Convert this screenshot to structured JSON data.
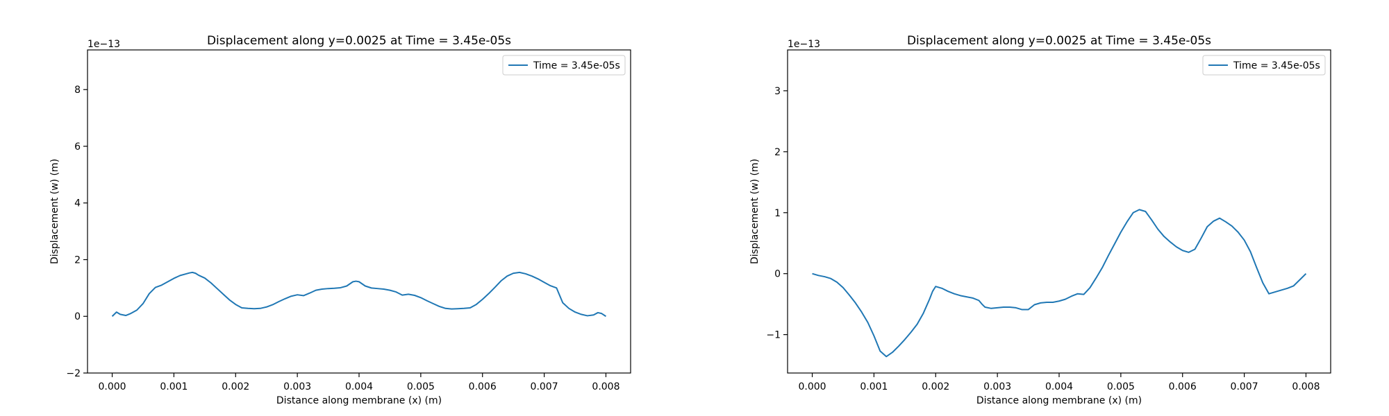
{
  "chart_data": [
    {
      "type": "line",
      "title": "Displacement along y=0.0025 at Time = 3.45e-05s",
      "xlabel": "Distance along membrane (x) (m)",
      "ylabel": "Displacement (w) (m)",
      "y_offset_label": "1e−13",
      "xlim": [
        -0.0004,
        0.0084
      ],
      "ylim": [
        -2,
        9.4
      ],
      "xticks": [
        0.0,
        0.001,
        0.002,
        0.003,
        0.004,
        0.005,
        0.006,
        0.007,
        0.008
      ],
      "xtick_labels": [
        "0.000",
        "0.001",
        "0.002",
        "0.003",
        "0.004",
        "0.005",
        "0.006",
        "0.007",
        "0.008"
      ],
      "yticks": [
        -2,
        0,
        2,
        4,
        6,
        8
      ],
      "ytick_labels": [
        "−2",
        "0",
        "2",
        "4",
        "6",
        "8"
      ],
      "legend_position": "top-right",
      "grid": false,
      "series": [
        {
          "name": "Time = 3.45e-05s",
          "color": "#1f77b4",
          "x": [
            0.0,
            7e-05,
            0.00013,
            0.00022,
            0.0003,
            0.0004,
            0.0005,
            0.0006,
            0.0007,
            0.0008,
            0.0009,
            0.001,
            0.0011,
            0.0012,
            0.00125,
            0.0013,
            0.00135,
            0.0014,
            0.0015,
            0.0016,
            0.0017,
            0.0018,
            0.0019,
            0.002,
            0.0021,
            0.0022,
            0.0023,
            0.0024,
            0.0025,
            0.0026,
            0.0027,
            0.0028,
            0.0029,
            0.003,
            0.0031,
            0.0032,
            0.0033,
            0.0034,
            0.0035,
            0.0036,
            0.0037,
            0.0038,
            0.0039,
            0.00395,
            0.004,
            0.0041,
            0.0042,
            0.0043,
            0.0044,
            0.0045,
            0.0046,
            0.0047,
            0.0048,
            0.0049,
            0.005,
            0.0051,
            0.0052,
            0.0053,
            0.0054,
            0.0055,
            0.0056,
            0.0057,
            0.0058,
            0.0059,
            0.006,
            0.0061,
            0.0062,
            0.0063,
            0.0064,
            0.0065,
            0.0066,
            0.0067,
            0.0068,
            0.0069,
            0.007,
            0.0071,
            0.0072,
            0.0073,
            0.0074,
            0.0075,
            0.0076,
            0.0077,
            0.0078,
            0.00787,
            0.00793,
            0.008
          ],
          "y": [
            0.0,
            0.15,
            0.07,
            0.03,
            0.1,
            0.22,
            0.45,
            0.8,
            1.02,
            1.1,
            1.22,
            1.34,
            1.44,
            1.5,
            1.53,
            1.55,
            1.52,
            1.45,
            1.35,
            1.18,
            0.98,
            0.78,
            0.58,
            0.42,
            0.3,
            0.28,
            0.27,
            0.28,
            0.33,
            0.41,
            0.52,
            0.62,
            0.71,
            0.76,
            0.73,
            0.82,
            0.92,
            0.96,
            0.98,
            0.99,
            1.01,
            1.07,
            1.22,
            1.24,
            1.22,
            1.07,
            1.0,
            0.98,
            0.96,
            0.92,
            0.86,
            0.75,
            0.78,
            0.74,
            0.66,
            0.55,
            0.45,
            0.35,
            0.28,
            0.26,
            0.27,
            0.28,
            0.3,
            0.42,
            0.6,
            0.8,
            1.02,
            1.25,
            1.42,
            1.52,
            1.55,
            1.5,
            1.42,
            1.32,
            1.2,
            1.08,
            1.0,
            0.48,
            0.28,
            0.15,
            0.07,
            0.02,
            0.05,
            0.13,
            0.1,
            0.0
          ]
        }
      ]
    },
    {
      "type": "line",
      "title": "Displacement along y=0.0025 at Time = 3.45e-05s",
      "xlabel": "Distance along membrane (x) (m)",
      "ylabel": "Displacement (w) (m)",
      "y_offset_label": "1e−13",
      "xlim": [
        -0.0004,
        0.0084
      ],
      "ylim": [
        -1.63,
        3.67
      ],
      "xticks": [
        0.0,
        0.001,
        0.002,
        0.003,
        0.004,
        0.005,
        0.006,
        0.007,
        0.008
      ],
      "xtick_labels": [
        "0.000",
        "0.001",
        "0.002",
        "0.003",
        "0.004",
        "0.005",
        "0.006",
        "0.007",
        "0.008"
      ],
      "yticks": [
        -1,
        0,
        1,
        2,
        3
      ],
      "ytick_labels": [
        "−1",
        "0",
        "1",
        "2",
        "3"
      ],
      "legend_position": "top-right",
      "grid": false,
      "series": [
        {
          "name": "Time = 3.45e-05s",
          "color": "#1f77b4",
          "x": [
            0.0,
            0.0001,
            0.0002,
            0.0003,
            0.0004,
            0.0005,
            0.0006,
            0.0007,
            0.0008,
            0.0009,
            0.001,
            0.0011,
            0.0012,
            0.0013,
            0.0014,
            0.0015,
            0.0016,
            0.0017,
            0.0018,
            0.0019,
            0.00195,
            0.002,
            0.0021,
            0.0022,
            0.0023,
            0.0024,
            0.0025,
            0.0026,
            0.0027,
            0.00275,
            0.0028,
            0.0029,
            0.003,
            0.0031,
            0.0032,
            0.0033,
            0.0034,
            0.0035,
            0.0036,
            0.0037,
            0.0038,
            0.0039,
            0.004,
            0.0041,
            0.0042,
            0.0043,
            0.0044,
            0.0045,
            0.0046,
            0.0047,
            0.0048,
            0.0049,
            0.005,
            0.0051,
            0.0052,
            0.0053,
            0.0054,
            0.0055,
            0.0056,
            0.0057,
            0.0058,
            0.0059,
            0.006,
            0.0061,
            0.0062,
            0.0063,
            0.0064,
            0.0065,
            0.0066,
            0.0067,
            0.0068,
            0.0069,
            0.007,
            0.0071,
            0.0072,
            0.0073,
            0.0074,
            0.0075,
            0.0076,
            0.0077,
            0.0078,
            0.0079,
            0.008
          ],
          "y": [
            0.0,
            -0.03,
            -0.05,
            -0.08,
            -0.14,
            -0.23,
            -0.35,
            -0.48,
            -0.63,
            -0.8,
            -1.02,
            -1.27,
            -1.36,
            -1.29,
            -1.19,
            -1.08,
            -0.96,
            -0.83,
            -0.65,
            -0.42,
            -0.29,
            -0.21,
            -0.24,
            -0.29,
            -0.33,
            -0.36,
            -0.38,
            -0.4,
            -0.44,
            -0.5,
            -0.55,
            -0.57,
            -0.56,
            -0.55,
            -0.55,
            -0.56,
            -0.59,
            -0.59,
            -0.51,
            -0.48,
            -0.47,
            -0.47,
            -0.45,
            -0.42,
            -0.37,
            -0.33,
            -0.34,
            -0.23,
            -0.07,
            0.1,
            0.3,
            0.49,
            0.68,
            0.85,
            1.0,
            1.05,
            1.02,
            0.88,
            0.73,
            0.61,
            0.52,
            0.44,
            0.38,
            0.35,
            0.4,
            0.58,
            0.77,
            0.86,
            0.91,
            0.85,
            0.78,
            0.68,
            0.55,
            0.36,
            0.1,
            -0.15,
            -0.33,
            -0.3,
            -0.27,
            -0.24,
            -0.2,
            -0.1,
            0.0
          ]
        }
      ]
    }
  ]
}
